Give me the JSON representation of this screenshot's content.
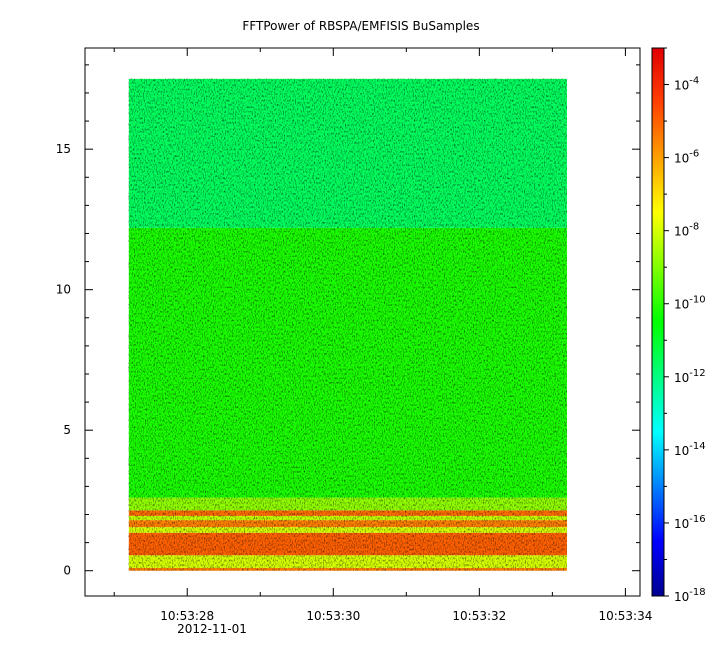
{
  "chart_data": {
    "type": "heatmap",
    "title": "FFTPower of RBSPA/EMFISIS  BuSamples",
    "x_axis": {
      "kind": "time",
      "range": [
        "10:53:26.6",
        "10:53:34.2"
      ],
      "tick_labels": [
        "10:53:28",
        "10:53:30",
        "10:53:32",
        "10:53:34"
      ],
      "tick_values": [
        28,
        30,
        32,
        34
      ],
      "date_label": "2012-11-01",
      "minor_tick_values": [
        27,
        29,
        31,
        33
      ]
    },
    "y_axis": {
      "range": [
        -0.9,
        18.6
      ],
      "tick_labels": [
        "0",
        "5",
        "10",
        "15"
      ],
      "tick_values": [
        0,
        5,
        10,
        15
      ]
    },
    "data_extent": {
      "x": [
        27.2,
        33.2
      ],
      "y": [
        0,
        17.5
      ]
    },
    "colorbar": {
      "scale": "log",
      "range": [
        1e-18,
        0.001
      ],
      "tick_values": [
        -18,
        -16,
        -14,
        -12,
        -10,
        -8,
        -6,
        -4
      ],
      "tick_labels": [
        {
          "base": "10",
          "exp": "-18"
        },
        {
          "base": "10",
          "exp": "-16"
        },
        {
          "base": "10",
          "exp": "-14"
        },
        {
          "base": "10",
          "exp": "-12"
        },
        {
          "base": "10",
          "exp": "-10"
        },
        {
          "base": "10",
          "exp": "-8"
        },
        {
          "base": "10",
          "exp": "-6"
        },
        {
          "base": "10",
          "exp": "-4"
        }
      ],
      "colormap": [
        "#00008f",
        "#0000ff",
        "#0080ff",
        "#00ffff",
        "#00ff80",
        "#00ff00",
        "#80ff00",
        "#ffff00",
        "#ffa000",
        "#ff4000",
        "#e00000"
      ]
    },
    "power_bands": [
      {
        "y_from": 0,
        "y_to": 0.1,
        "log_power": -5.5
      },
      {
        "y_from": 0.1,
        "y_to": 0.55,
        "log_power": -8.0
      },
      {
        "y_from": 0.55,
        "y_to": 1.35,
        "log_power": -5.0
      },
      {
        "y_from": 1.35,
        "y_to": 1.55,
        "log_power": -8.0
      },
      {
        "y_from": 1.55,
        "y_to": 1.8,
        "log_power": -5.5
      },
      {
        "y_from": 1.8,
        "y_to": 1.95,
        "log_power": -8.2
      },
      {
        "y_from": 1.95,
        "y_to": 2.15,
        "log_power": -5.2
      },
      {
        "y_from": 2.15,
        "y_to": 2.6,
        "log_power": -8.8
      },
      {
        "y_from": 2.6,
        "y_to": 12.2,
        "log_power": -10.2
      },
      {
        "y_from": 12.2,
        "y_to": 17.5,
        "log_power": -11.6
      }
    ]
  }
}
